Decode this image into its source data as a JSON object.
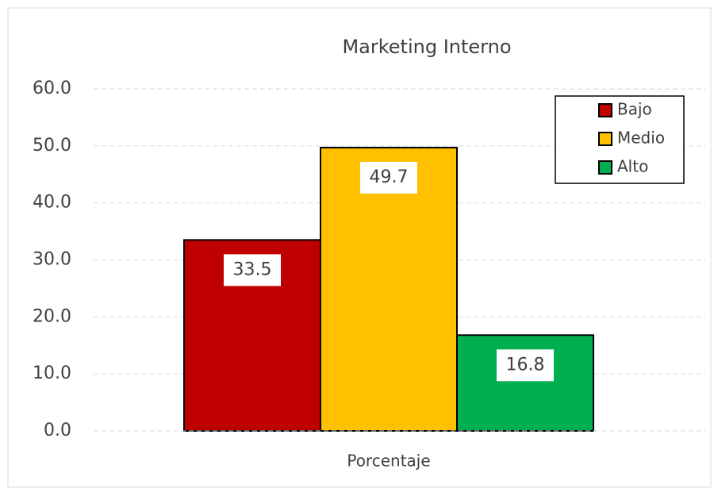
{
  "chart_data": {
    "type": "bar",
    "title": "Marketing Interno",
    "categories": [
      "Porcentaje"
    ],
    "series": [
      {
        "name": "Bajo",
        "color": "#c00000",
        "values": [
          33.5
        ]
      },
      {
        "name": "Medio",
        "color": "#ffc000",
        "values": [
          49.7
        ]
      },
      {
        "name": "Alto",
        "color": "#00b050",
        "values": [
          16.8
        ]
      }
    ],
    "ylim": [
      0,
      60
    ],
    "yticks": [
      {
        "value": 0,
        "label": "0.0"
      },
      {
        "value": 10,
        "label": "10.0"
      },
      {
        "value": 20,
        "label": "20.0"
      },
      {
        "value": 30,
        "label": "30.0"
      },
      {
        "value": 40,
        "label": "40.0"
      },
      {
        "value": 50,
        "label": "50.0"
      },
      {
        "value": 60,
        "label": "60.0"
      }
    ],
    "grid": true,
    "legend": "top-right",
    "data_labels": true
  }
}
